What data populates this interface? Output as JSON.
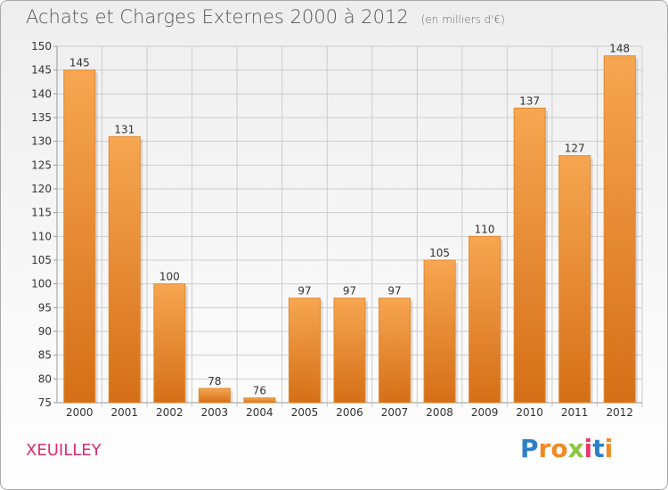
{
  "header": {
    "title": "Achats et Charges Externes 2000 à 2012",
    "unit": "(en milliers d'€)"
  },
  "commune": "XEUILLEY",
  "logo": {
    "text": "Proxiti",
    "letters": [
      {
        "ch": "P",
        "color": "#2c7fc8"
      },
      {
        "ch": "r",
        "color": "#f08a24"
      },
      {
        "ch": "o",
        "color": "#f08a24"
      },
      {
        "ch": "x",
        "color": "#8cc63f"
      },
      {
        "ch": "i",
        "color": "#e83a6f"
      },
      {
        "ch": "t",
        "color": "#2c7fc8"
      },
      {
        "ch": "i",
        "color": "#f08a24"
      }
    ]
  },
  "colors": {
    "bar_top": "#f7a651",
    "bar_bottom": "#d56f17",
    "grid": "#cccccc",
    "axis": "#999999",
    "commune": "#dc2d73"
  },
  "chart_data": {
    "type": "bar",
    "categories": [
      "2000",
      "2001",
      "2002",
      "2003",
      "2004",
      "2005",
      "2006",
      "2007",
      "2008",
      "2009",
      "2010",
      "2011",
      "2012"
    ],
    "values": [
      145,
      131,
      100,
      78,
      76,
      97,
      97,
      97,
      105,
      110,
      137,
      127,
      148
    ],
    "ylim": [
      75,
      150
    ],
    "yticks": [
      75,
      80,
      85,
      90,
      95,
      100,
      105,
      110,
      115,
      120,
      125,
      130,
      135,
      140,
      145,
      150
    ],
    "grid": true,
    "xlabel": "",
    "ylabel": ""
  }
}
